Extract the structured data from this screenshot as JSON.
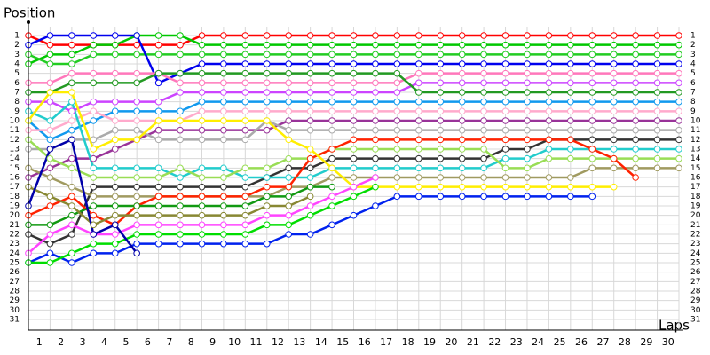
{
  "chart_data": {
    "type": "line",
    "title": "Position",
    "xlabel": "Laps",
    "x": [
      0,
      1,
      2,
      3,
      4,
      5,
      6,
      7,
      8,
      9,
      10,
      11,
      12,
      13,
      14,
      15,
      16,
      17,
      18,
      19,
      20,
      21,
      22,
      23,
      24,
      25,
      26,
      27,
      28,
      29,
      30
    ],
    "xlim": [
      0,
      30
    ],
    "xticks": [
      {
        "value": 0.5,
        "label": "1"
      },
      {
        "value": 1.5,
        "label": "2"
      },
      {
        "value": 2.5,
        "label": "3"
      },
      {
        "value": 3.5,
        "label": "4"
      },
      {
        "value": 4.5,
        "label": "5"
      },
      {
        "value": 5.5,
        "label": "6"
      },
      {
        "value": 6.5,
        "label": "7"
      },
      {
        "value": 7.5,
        "label": "8"
      },
      {
        "value": 8.5,
        "label": "9"
      },
      {
        "value": 9.5,
        "label": "10"
      },
      {
        "value": 10.5,
        "label": "11"
      },
      {
        "value": 11.5,
        "label": "12"
      },
      {
        "value": 12.5,
        "label": "13"
      },
      {
        "value": 13.5,
        "label": "14"
      },
      {
        "value": 14.5,
        "label": "15"
      },
      {
        "value": 15.5,
        "label": "16"
      },
      {
        "value": 16.5,
        "label": "17"
      },
      {
        "value": 17.5,
        "label": "18"
      },
      {
        "value": 18.5,
        "label": "19"
      },
      {
        "value": 19.5,
        "label": "20"
      },
      {
        "value": 20.5,
        "label": "21"
      },
      {
        "value": 21.5,
        "label": "22"
      },
      {
        "value": 22.5,
        "label": "23"
      },
      {
        "value": 23.5,
        "label": "24"
      },
      {
        "value": 24.5,
        "label": "25"
      },
      {
        "value": 25.5,
        "label": "26"
      },
      {
        "value": 26.5,
        "label": "27"
      },
      {
        "value": 27.5,
        "label": "28"
      },
      {
        "value": 28.5,
        "label": "29"
      },
      {
        "value": 29.5,
        "label": "30"
      }
    ],
    "ylim": [
      1,
      31
    ],
    "y_inverted": true,
    "yticks": [
      1,
      2,
      3,
      4,
      5,
      6,
      7,
      8,
      9,
      10,
      11,
      12,
      13,
      14,
      15,
      16,
      17,
      18,
      19,
      20,
      21,
      22,
      23,
      24,
      25,
      26,
      27,
      28,
      29,
      30,
      31
    ],
    "grid": true,
    "series": [
      {
        "color": "#ff0000",
        "values": [
          1,
          2,
          2,
          2,
          2,
          2,
          2,
          2,
          1,
          1,
          1,
          1,
          1,
          1,
          1,
          1,
          1,
          1,
          1,
          1,
          1,
          1,
          1,
          1,
          1,
          1,
          1,
          1,
          1,
          1,
          1
        ]
      },
      {
        "color": "#00c800",
        "values": [
          4,
          3,
          3,
          2,
          2,
          1,
          1,
          1,
          2,
          2,
          2,
          2,
          2,
          2,
          2,
          2,
          2,
          2,
          2,
          2,
          2,
          2,
          2,
          2,
          2,
          2,
          2,
          2,
          2,
          2,
          2
        ]
      },
      {
        "color": "#22cc22",
        "values": [
          3,
          4,
          4,
          3,
          3,
          3,
          3,
          3,
          3,
          3,
          3,
          3,
          3,
          3,
          3,
          3,
          3,
          3,
          3,
          3,
          3,
          3,
          3,
          3,
          3,
          3,
          3,
          3,
          3,
          3,
          3
        ]
      },
      {
        "color": "#0000ee",
        "values": [
          2,
          1,
          1,
          1,
          1,
          1,
          6,
          5,
          4,
          4,
          4,
          4,
          4,
          4,
          4,
          4,
          4,
          4,
          4,
          4,
          4,
          4,
          4,
          4,
          4,
          4,
          4,
          4,
          4,
          4,
          4
        ]
      },
      {
        "color": "#ff77bb",
        "values": [
          6,
          6,
          5,
          5,
          5,
          5,
          5,
          6,
          6,
          6,
          6,
          6,
          6,
          6,
          6,
          6,
          6,
          6,
          5,
          5,
          5,
          5,
          5,
          5,
          5,
          5,
          5,
          5,
          5,
          5,
          5
        ]
      },
      {
        "color": "#cc44ff",
        "values": [
          8,
          8,
          9,
          8,
          8,
          8,
          8,
          7,
          7,
          7,
          7,
          7,
          7,
          7,
          7,
          7,
          7,
          7,
          6,
          6,
          6,
          6,
          6,
          6,
          6,
          6,
          6,
          6,
          6,
          6,
          6
        ]
      },
      {
        "color": "#229922",
        "values": [
          7,
          7,
          6,
          6,
          6,
          6,
          5,
          5,
          5,
          5,
          5,
          5,
          5,
          5,
          5,
          5,
          5,
          5,
          7,
          7,
          7,
          7,
          7,
          7,
          7,
          7,
          7,
          7,
          7,
          7,
          7
        ]
      },
      {
        "color": "#1199ee",
        "values": [
          10,
          12,
          11,
          10,
          9,
          9,
          9,
          9,
          8,
          8,
          8,
          8,
          8,
          8,
          8,
          8,
          8,
          8,
          8,
          8,
          8,
          8,
          8,
          8,
          8,
          8,
          8,
          8,
          8,
          8,
          8
        ]
      },
      {
        "color": "#ffaacc",
        "values": [
          11,
          11,
          10,
          9,
          10,
          10,
          10,
          10,
          9,
          9,
          9,
          9,
          9,
          9,
          9,
          9,
          9,
          9,
          9,
          9,
          9,
          9,
          9,
          9,
          9,
          9,
          9,
          9,
          9,
          9,
          9
        ]
      },
      {
        "color": "#993399",
        "values": [
          16,
          15,
          14,
          14,
          13,
          12,
          11,
          11,
          11,
          11,
          11,
          11,
          10,
          10,
          10,
          10,
          10,
          10,
          10,
          10,
          10,
          10,
          10,
          10,
          10,
          10,
          10,
          10,
          10,
          10,
          10
        ]
      },
      {
        "color": "#aaaaaa",
        "values": [
          13,
          13,
          12,
          12,
          11,
          11,
          12,
          12,
          12,
          12,
          12,
          10,
          11,
          11,
          11,
          11,
          11,
          11,
          11,
          11,
          11,
          11,
          11,
          11,
          11,
          11,
          11,
          11,
          11,
          11,
          11
        ]
      },
      {
        "color": "#333333",
        "values": [
          22,
          23,
          22,
          17,
          17,
          17,
          17,
          17,
          17,
          17,
          17,
          16,
          15,
          15,
          14,
          14,
          14,
          14,
          14,
          14,
          14,
          14,
          13,
          13,
          12,
          12,
          12,
          12,
          12,
          12,
          12
        ]
      },
      {
        "color": "#22cccc",
        "values": [
          9,
          10,
          8,
          15,
          15,
          15,
          15,
          16,
          15,
          15,
          16,
          16,
          16,
          16,
          15,
          15,
          15,
          15,
          15,
          15,
          15,
          15,
          14,
          14,
          13,
          13,
          13,
          13,
          13,
          13,
          13
        ]
      },
      {
        "color": "#99dd55",
        "values": [
          12,
          14,
          15,
          16,
          16,
          16,
          16,
          15,
          16,
          16,
          15,
          15,
          14,
          14,
          13,
          13,
          13,
          13,
          13,
          13,
          13,
          13,
          15,
          15,
          14,
          14,
          14,
          14,
          14,
          14,
          14
        ]
      },
      {
        "color": "#a09a60",
        "values": [
          15,
          16,
          17,
          18,
          18,
          18,
          18,
          18,
          18,
          18,
          18,
          18,
          17,
          17,
          16,
          16,
          16,
          16,
          16,
          16,
          16,
          16,
          16,
          16,
          16,
          16,
          15,
          15,
          15,
          15,
          15
        ]
      },
      {
        "color": "#ff2200",
        "values": [
          20,
          19,
          18,
          20,
          21,
          19,
          18,
          18,
          18,
          18,
          18,
          17,
          17,
          14,
          13,
          12,
          12,
          12,
          12,
          12,
          12,
          12,
          12,
          12,
          12,
          12,
          13,
          14,
          16,
          null,
          null
        ]
      },
      {
        "color": "#ffee00",
        "values": [
          10,
          7,
          7,
          13,
          12,
          12,
          10,
          10,
          10,
          10,
          10,
          10,
          12,
          13,
          15,
          17,
          17,
          17,
          17,
          17,
          17,
          17,
          17,
          17,
          17,
          17,
          17,
          17,
          null,
          null,
          null
        ]
      },
      {
        "color": "#0022ee",
        "values": [
          25,
          24,
          25,
          24,
          24,
          23,
          23,
          23,
          23,
          23,
          23,
          23,
          22,
          22,
          21,
          20,
          19,
          18,
          18,
          18,
          18,
          18,
          18,
          18,
          18,
          18,
          18,
          null,
          null,
          null,
          null
        ]
      },
      {
        "color": "#00dd00",
        "values": [
          25,
          25,
          24,
          23,
          23,
          22,
          22,
          22,
          22,
          22,
          22,
          21,
          21,
          20,
          19,
          18,
          17,
          null,
          null,
          null,
          null,
          null,
          null,
          null,
          null,
          null,
          null,
          null,
          null,
          null,
          null
        ]
      },
      {
        "color": "#ff44ff",
        "values": [
          24,
          22,
          21,
          22,
          22,
          21,
          21,
          21,
          21,
          21,
          21,
          20,
          20,
          19,
          18,
          17,
          16,
          null,
          null,
          null,
          null,
          null,
          null,
          null,
          null,
          null,
          null,
          null,
          null,
          null,
          null
        ]
      },
      {
        "color": "#119911",
        "values": [
          21,
          21,
          20,
          19,
          19,
          19,
          19,
          19,
          19,
          19,
          19,
          18,
          18,
          17,
          17,
          null,
          null,
          null,
          null,
          null,
          null,
          null,
          null,
          null,
          null,
          null,
          null,
          null,
          null,
          null,
          null
        ]
      },
      {
        "color": "#888833",
        "values": [
          17,
          18,
          19,
          21,
          20,
          20,
          20,
          20,
          20,
          20,
          20,
          19,
          19,
          18,
          null,
          null,
          null,
          null,
          null,
          null,
          null,
          null,
          null,
          null,
          null,
          null,
          null,
          null,
          null,
          null,
          null
        ]
      },
      {
        "color": "#0000aa",
        "values": [
          19,
          13,
          12,
          22,
          21,
          24,
          null,
          null,
          null,
          null,
          null,
          null,
          null,
          null,
          null,
          null,
          null,
          null,
          null,
          null,
          null,
          null,
          null,
          null,
          null,
          null,
          null,
          null,
          null,
          null,
          null
        ]
      }
    ]
  }
}
